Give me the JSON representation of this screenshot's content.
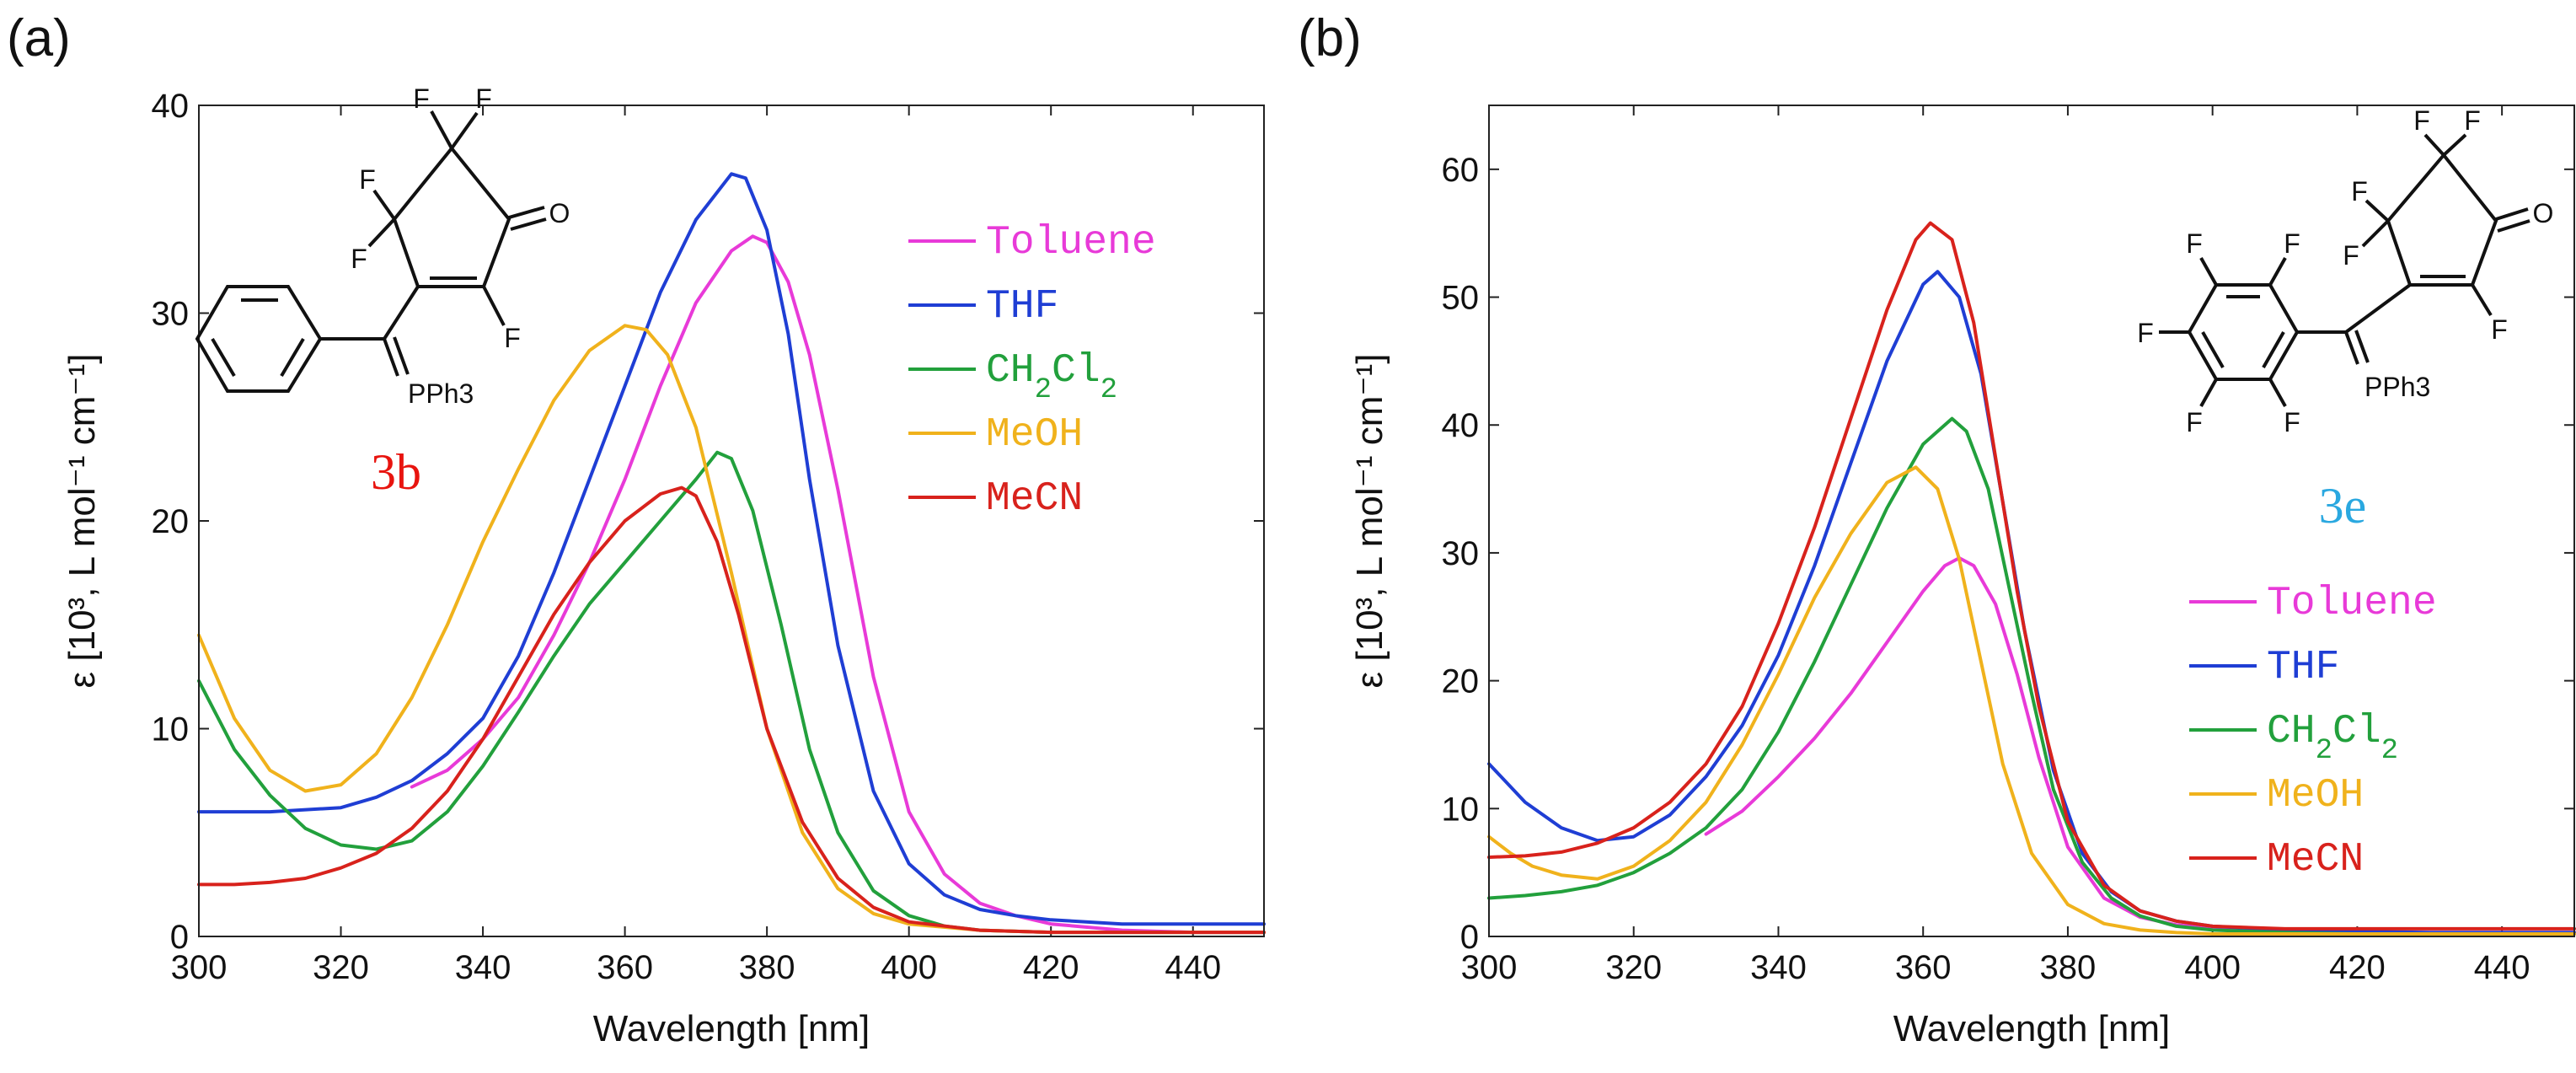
{
  "chart_data": [
    {
      "type": "line",
      "panel_label": "(a)",
      "compound_label": "3b",
      "compound_color": "#e8140f",
      "xlabel": "Wavelength [nm]",
      "ylabel": "ε [10³, L mol⁻¹ cm⁻¹]",
      "xlim": [
        300,
        450
      ],
      "ylim": [
        0,
        40
      ],
      "xticks": [
        300,
        320,
        340,
        360,
        380,
        400,
        420,
        440
      ],
      "yticks": [
        0,
        10,
        20,
        30,
        40
      ],
      "structure": {
        "atoms": [
          "F",
          "F",
          "F",
          "F",
          "O",
          "F",
          "PPh3"
        ],
        "ring_aryl": "phenyl"
      },
      "series": [
        {
          "name": "Toluene",
          "color": "#e83ad8",
          "x": [
            330,
            335,
            340,
            345,
            350,
            355,
            360,
            365,
            370,
            375,
            378,
            380,
            383,
            386,
            390,
            395,
            400,
            405,
            410,
            415,
            420,
            430,
            440,
            450
          ],
          "y": [
            7.2,
            8.0,
            9.5,
            11.5,
            14.5,
            18.0,
            22.0,
            26.5,
            30.5,
            33.0,
            33.7,
            33.4,
            31.5,
            28.0,
            21.5,
            12.5,
            6.0,
            3.0,
            1.6,
            1.0,
            0.6,
            0.3,
            0.2,
            0.2
          ]
        },
        {
          "name": "THF",
          "color": "#1f3ed4",
          "x": [
            300,
            310,
            320,
            325,
            330,
            335,
            340,
            345,
            350,
            355,
            360,
            365,
            370,
            375,
            377,
            380,
            383,
            386,
            390,
            395,
            400,
            405,
            410,
            415,
            420,
            430,
            440,
            450
          ],
          "y": [
            6.0,
            6.0,
            6.2,
            6.7,
            7.5,
            8.8,
            10.5,
            13.5,
            17.5,
            22.0,
            26.5,
            31.0,
            34.5,
            36.7,
            36.5,
            34.0,
            29.0,
            22.0,
            14.0,
            7.0,
            3.5,
            2.0,
            1.3,
            1.0,
            0.8,
            0.6,
            0.6,
            0.6
          ]
        },
        {
          "name": "CH2Cl2",
          "color": "#22a03c",
          "x": [
            300,
            305,
            310,
            315,
            320,
            325,
            330,
            335,
            340,
            345,
            350,
            355,
            360,
            365,
            370,
            373,
            375,
            378,
            382,
            386,
            390,
            395,
            400,
            405,
            410,
            420,
            430,
            440,
            450
          ],
          "y": [
            12.3,
            9.0,
            6.8,
            5.2,
            4.4,
            4.2,
            4.6,
            6.0,
            8.2,
            10.8,
            13.5,
            16.0,
            18.0,
            20.0,
            22.0,
            23.3,
            23.0,
            20.5,
            15.0,
            9.0,
            5.0,
            2.2,
            1.0,
            0.5,
            0.3,
            0.2,
            0.2,
            0.2,
            0.2
          ]
        },
        {
          "name": "MeOH",
          "color": "#f0b21c",
          "x": [
            300,
            305,
            310,
            315,
            320,
            325,
            330,
            335,
            340,
            345,
            350,
            355,
            360,
            363,
            366,
            370,
            375,
            380,
            385,
            390,
            395,
            400,
            410,
            420,
            430,
            440,
            450
          ],
          "y": [
            14.5,
            10.5,
            8.0,
            7.0,
            7.3,
            8.8,
            11.5,
            15.0,
            19.0,
            22.5,
            25.8,
            28.2,
            29.4,
            29.2,
            28.0,
            24.5,
            17.5,
            10.0,
            5.0,
            2.3,
            1.1,
            0.6,
            0.3,
            0.2,
            0.2,
            0.2,
            0.2
          ]
        },
        {
          "name": "MeCN",
          "color": "#d8221c",
          "x": [
            300,
            305,
            310,
            315,
            320,
            325,
            330,
            335,
            340,
            345,
            350,
            355,
            360,
            365,
            368,
            370,
            373,
            376,
            380,
            385,
            390,
            395,
            400,
            410,
            420,
            430,
            440,
            450
          ],
          "y": [
            2.5,
            2.5,
            2.6,
            2.8,
            3.3,
            4.0,
            5.2,
            7.0,
            9.5,
            12.5,
            15.5,
            18.0,
            20.0,
            21.3,
            21.6,
            21.2,
            19.0,
            15.5,
            10.0,
            5.5,
            2.8,
            1.4,
            0.7,
            0.3,
            0.2,
            0.2,
            0.2,
            0.2
          ]
        }
      ]
    },
    {
      "type": "line",
      "panel_label": "(b)",
      "compound_label": "3e",
      "compound_color": "#2aa8e0",
      "xlabel": "Wavelength [nm]",
      "ylabel": "ε [10³, L mol⁻¹ cm⁻¹]",
      "xlim": [
        300,
        450
      ],
      "ylim": [
        0,
        65
      ],
      "xticks": [
        300,
        320,
        340,
        360,
        380,
        400,
        420,
        440
      ],
      "yticks": [
        0,
        10,
        20,
        30,
        40,
        50,
        60
      ],
      "structure": {
        "atoms": [
          "F",
          "F",
          "F",
          "F",
          "O",
          "F",
          "F",
          "F",
          "F",
          "F",
          "F",
          "PPh3"
        ],
        "ring_aryl": "pentafluorophenyl"
      },
      "series": [
        {
          "name": "Toluene",
          "color": "#e83ad8",
          "x": [
            330,
            335,
            340,
            345,
            350,
            355,
            360,
            363,
            365,
            367,
            370,
            373,
            376,
            380,
            385,
            390,
            395,
            400,
            410,
            420,
            430,
            440,
            450
          ],
          "y": [
            8.0,
            9.8,
            12.5,
            15.5,
            19.0,
            23.0,
            27.0,
            29.0,
            29.6,
            29.0,
            26.0,
            20.5,
            14.0,
            7.0,
            3.0,
            1.5,
            0.9,
            0.6,
            0.4,
            0.3,
            0.3,
            0.3,
            0.3
          ]
        },
        {
          "name": "THF",
          "color": "#1f3ed4",
          "x": [
            300,
            305,
            310,
            315,
            320,
            325,
            330,
            335,
            340,
            345,
            350,
            355,
            360,
            362,
            365,
            368,
            371,
            374,
            378,
            382,
            386,
            390,
            395,
            400,
            410,
            420,
            430,
            440,
            450
          ],
          "y": [
            13.5,
            10.5,
            8.5,
            7.5,
            7.8,
            9.5,
            12.5,
            16.5,
            22.0,
            29.0,
            37.0,
            45.0,
            51.0,
            52.0,
            50.0,
            44.0,
            34.0,
            24.0,
            13.0,
            6.5,
            3.5,
            2.0,
            1.2,
            0.8,
            0.5,
            0.4,
            0.3,
            0.3,
            0.3
          ]
        },
        {
          "name": "CH2Cl2",
          "color": "#22a03c",
          "x": [
            300,
            305,
            310,
            315,
            320,
            325,
            330,
            335,
            340,
            345,
            350,
            355,
            360,
            364,
            366,
            369,
            372,
            375,
            378,
            382,
            386,
            390,
            395,
            400,
            410,
            420,
            430,
            440,
            450
          ],
          "y": [
            3.0,
            3.2,
            3.5,
            4.0,
            5.0,
            6.5,
            8.5,
            11.5,
            16.0,
            21.5,
            27.5,
            33.5,
            38.5,
            40.5,
            39.5,
            35.0,
            27.0,
            19.0,
            11.5,
            5.8,
            3.0,
            1.6,
            0.8,
            0.5,
            0.3,
            0.2,
            0.2,
            0.2,
            0.2
          ]
        },
        {
          "name": "MeOH",
          "color": "#f0b21c",
          "x": [
            300,
            303,
            306,
            310,
            315,
            320,
            325,
            330,
            335,
            340,
            345,
            350,
            355,
            359,
            362,
            365,
            368,
            371,
            375,
            380,
            385,
            390,
            395,
            400,
            410,
            420,
            430,
            440,
            450
          ],
          "y": [
            7.8,
            6.5,
            5.5,
            4.8,
            4.5,
            5.5,
            7.5,
            10.5,
            15.0,
            20.5,
            26.5,
            31.5,
            35.5,
            36.7,
            35.0,
            29.5,
            21.5,
            13.5,
            6.5,
            2.5,
            1.0,
            0.5,
            0.3,
            0.2,
            0.2,
            0.2,
            0.2,
            0.2,
            0.2
          ]
        },
        {
          "name": "MeCN",
          "color": "#d8221c",
          "x": [
            300,
            305,
            310,
            315,
            320,
            325,
            330,
            335,
            340,
            345,
            350,
            355,
            359,
            361,
            364,
            367,
            370,
            373,
            376,
            380,
            385,
            390,
            395,
            400,
            410,
            420,
            430,
            440,
            450
          ],
          "y": [
            6.2,
            6.3,
            6.6,
            7.3,
            8.5,
            10.5,
            13.5,
            18.0,
            24.5,
            32.0,
            40.5,
            49.0,
            54.5,
            55.8,
            54.5,
            48.0,
            37.5,
            27.0,
            18.0,
            9.0,
            4.0,
            2.0,
            1.2,
            0.8,
            0.6,
            0.6,
            0.6,
            0.6,
            0.6
          ]
        }
      ]
    }
  ]
}
